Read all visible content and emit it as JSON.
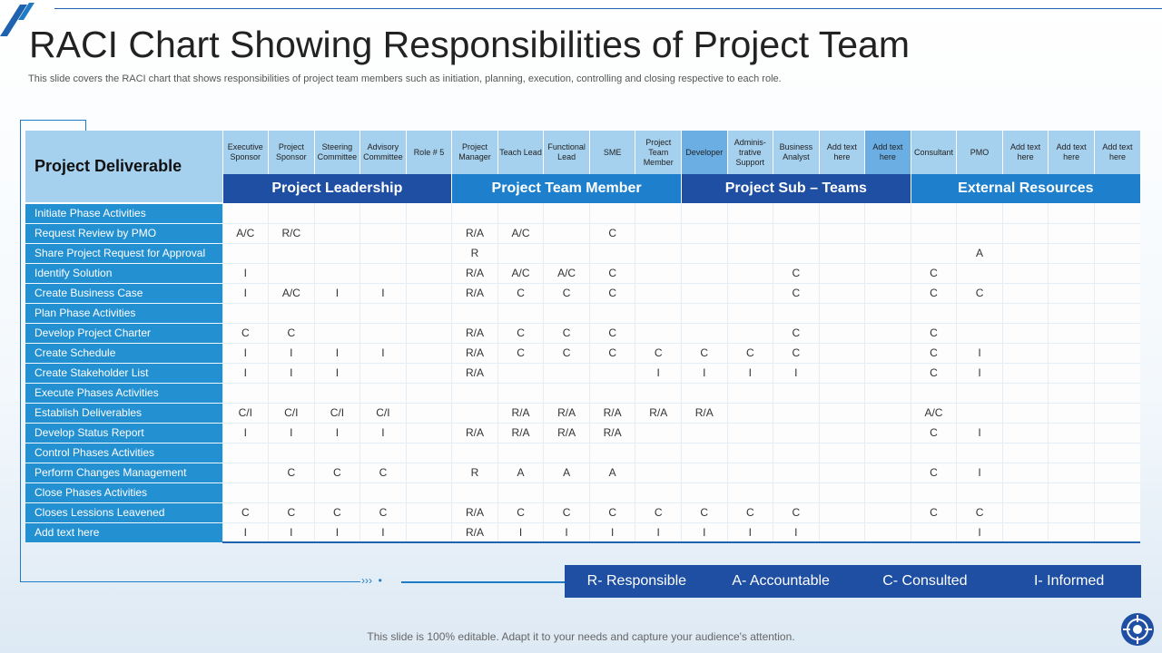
{
  "title": "RACI Chart Showing Responsibilities of Project Team",
  "subtitle": "This slide covers the RACI chart that shows responsibilities of project team members such as initiation, planning, execution, controlling and closing respective to each role.",
  "table": {
    "corner_label": "Project Deliverable",
    "roles": [
      "Executive Sponsor",
      "Project Sponsor",
      "Steering Committee",
      "Advisory Committee",
      "Role # 5",
      "Project Manager",
      "Teach Lead",
      "Functional Lead",
      "SME",
      "Project Team Member",
      "Developer",
      "Adminis-trative Support",
      "Business Analyst",
      "Add text here",
      "Add text here",
      "Consultant",
      "PMO",
      "Add text here",
      "Add text here",
      "Add text here"
    ],
    "groups": [
      "Project Leadership",
      "Project Team Member",
      "Project Sub – Teams",
      "External Resources"
    ],
    "rows": [
      {
        "task": "Initiate Phase Activities",
        "cells": [
          "",
          "",
          "",
          "",
          "",
          "",
          "",
          "",
          "",
          "",
          "",
          "",
          "",
          "",
          "",
          "",
          "",
          "",
          "",
          ""
        ]
      },
      {
        "task": "Request Review by PMO",
        "cells": [
          "A/C",
          "R/C",
          "",
          "",
          "",
          "R/A",
          "A/C",
          "",
          "C",
          "",
          "",
          "",
          "",
          "",
          "",
          "",
          "",
          "",
          "",
          ""
        ]
      },
      {
        "task": "Share Project Request for Approval",
        "cells": [
          "",
          "",
          "",
          "",
          "",
          "R",
          "",
          "",
          "",
          "",
          "",
          "",
          "",
          "",
          "",
          "",
          "A",
          "",
          "",
          ""
        ]
      },
      {
        "task": "Identify Solution",
        "cells": [
          "I",
          "",
          "",
          "",
          "",
          "R/A",
          "A/C",
          "A/C",
          "C",
          "",
          "",
          "",
          "C",
          "",
          "",
          "C",
          "",
          "",
          "",
          ""
        ]
      },
      {
        "task": "Create Business Case",
        "cells": [
          "I",
          "A/C",
          "I",
          "I",
          "",
          "R/A",
          "C",
          "C",
          "C",
          "",
          "",
          "",
          "C",
          "",
          "",
          "C",
          "C",
          "",
          "",
          ""
        ]
      },
      {
        "task": "Plan Phase Activities",
        "cells": [
          "",
          "",
          "",
          "",
          "",
          "",
          "",
          "",
          "",
          "",
          "",
          "",
          "",
          "",
          "",
          "",
          "",
          "",
          "",
          ""
        ]
      },
      {
        "task": "Develop Project Charter",
        "cells": [
          "C",
          "C",
          "",
          "",
          "",
          "R/A",
          "C",
          "C",
          "C",
          "",
          "",
          "",
          "C",
          "",
          "",
          "C",
          "",
          "",
          "",
          ""
        ]
      },
      {
        "task": "Create Schedule",
        "cells": [
          "I",
          "I",
          "I",
          "I",
          "",
          "R/A",
          "C",
          "C",
          "C",
          "C",
          "C",
          "C",
          "C",
          "",
          "",
          "C",
          "I",
          "",
          "",
          ""
        ]
      },
      {
        "task": "Create Stakeholder List",
        "cells": [
          "I",
          "I",
          "I",
          "",
          "",
          "R/A",
          "",
          "",
          "",
          "I",
          "I",
          "I",
          "I",
          "",
          "",
          "C",
          "I",
          "",
          "",
          ""
        ]
      },
      {
        "task": "Execute Phases Activities",
        "cells": [
          "",
          "",
          "",
          "",
          "",
          "",
          "",
          "",
          "",
          "",
          "",
          "",
          "",
          "",
          "",
          "",
          "",
          "",
          "",
          ""
        ]
      },
      {
        "task": "Establish Deliverables",
        "cells": [
          "C/I",
          "C/I",
          "C/I",
          "C/I",
          "",
          "",
          "R/A",
          "R/A",
          "R/A",
          "R/A",
          "R/A",
          "",
          "",
          "",
          "",
          "A/C",
          "",
          "",
          "",
          ""
        ]
      },
      {
        "task": "Develop Status Report",
        "cells": [
          "I",
          "I",
          "I",
          "I",
          "",
          "R/A",
          "R/A",
          "R/A",
          "R/A",
          "",
          "",
          "",
          "",
          "",
          "",
          "C",
          "I",
          "",
          "",
          ""
        ]
      },
      {
        "task": "Control  Phases Activities",
        "cells": [
          "",
          "",
          "",
          "",
          "",
          "",
          "",
          "",
          "",
          "",
          "",
          "",
          "",
          "",
          "",
          "",
          "",
          "",
          "",
          ""
        ]
      },
      {
        "task": "Perform Changes Management",
        "cells": [
          "",
          "C",
          "C",
          "C",
          "",
          "R",
          "A",
          "A",
          "A",
          "",
          "",
          "",
          "",
          "",
          "",
          "C",
          "I",
          "",
          "",
          ""
        ]
      },
      {
        "task": "Close Phases Activities",
        "cells": [
          "",
          "",
          "",
          "",
          "",
          "",
          "",
          "",
          "",
          "",
          "",
          "",
          "",
          "",
          "",
          "",
          "",
          "",
          "",
          ""
        ]
      },
      {
        "task": "Closes Lessions Leavened",
        "cells": [
          "C",
          "C",
          "C",
          "C",
          "",
          "R/A",
          "C",
          "C",
          "C",
          "C",
          "C",
          "C",
          "C",
          "",
          "",
          "C",
          "C",
          "",
          "",
          ""
        ]
      },
      {
        "task": "Add text here",
        "cells": [
          "I",
          "I",
          "I",
          "I",
          "",
          "R/A",
          "I",
          "I",
          "I",
          "I",
          "I",
          "I",
          "I",
          "",
          "",
          "",
          "I",
          "",
          "",
          ""
        ]
      }
    ]
  },
  "legend": [
    "R- Responsible",
    "A- Accountable",
    "C- Consulted",
    "I- Informed"
  ],
  "footer": "This slide is 100% editable. Adapt it to your needs and capture your audience's attention.",
  "colors": {
    "navy": "#1e4fa3",
    "azure": "#1e80cc",
    "task_bg": "#2390d2",
    "header_light": "#a5d0ee"
  }
}
